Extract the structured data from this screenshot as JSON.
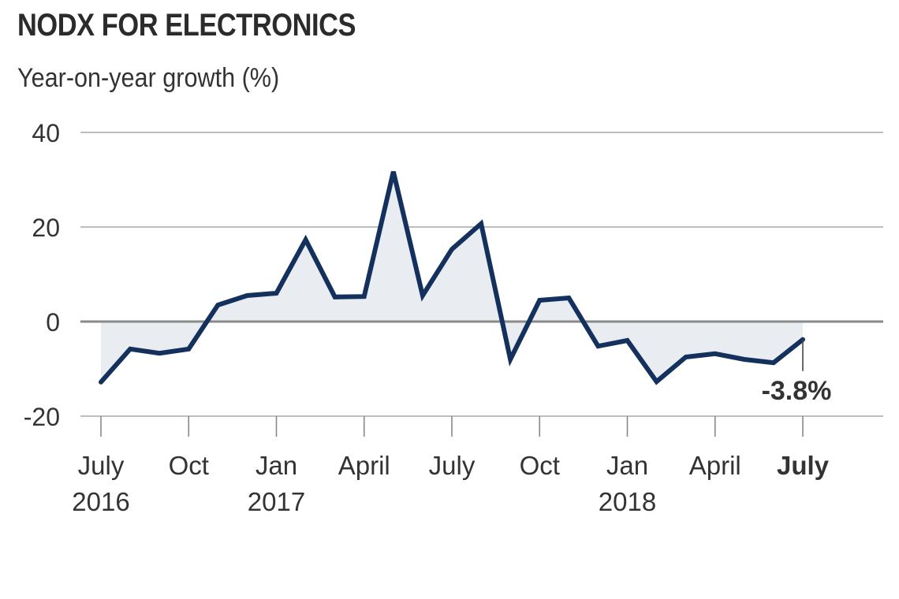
{
  "chart_data": {
    "type": "line",
    "title": "NODX FOR ELECTRONICS",
    "subtitle": "Year-on-year growth (%)",
    "xlabel": "",
    "ylabel": "Year-on-year growth (%)",
    "ylim": [
      -20,
      40
    ],
    "yticks": [
      {
        "value": 40,
        "label": "40"
      },
      {
        "value": 20,
        "label": "20"
      },
      {
        "value": 0,
        "label": "0"
      },
      {
        "value": -20,
        "label": "-20"
      }
    ],
    "grid": true,
    "x": [
      "Jul 2016",
      "Aug 2016",
      "Sep 2016",
      "Oct 2016",
      "Nov 2016",
      "Dec 2016",
      "Jan 2017",
      "Feb 2017",
      "Mar 2017",
      "Apr 2017",
      "May 2017",
      "Jun 2017",
      "Jul 2017",
      "Aug 2017",
      "Sep 2017",
      "Oct 2017",
      "Nov 2017",
      "Dec 2017",
      "Jan 2018",
      "Feb 2018",
      "Mar 2018",
      "Apr 2018",
      "May 2018",
      "Jun 2018",
      "Jul 2018"
    ],
    "series": [
      {
        "name": "NODX for electronics",
        "values": [
          -12.8,
          -5.8,
          -6.7,
          -5.8,
          3.5,
          5.5,
          6.0,
          17.3,
          5.2,
          5.3,
          31.7,
          5.5,
          15.3,
          20.7,
          -8.0,
          4.5,
          5.0,
          -5.2,
          -4.0,
          -12.7,
          -7.5,
          -6.8,
          -8.0,
          -8.7,
          -3.8
        ]
      }
    ],
    "xticks": [
      {
        "index": 0,
        "line1": "July",
        "line2": "2016",
        "bold": false
      },
      {
        "index": 3,
        "line1": "Oct",
        "line2": "",
        "bold": false
      },
      {
        "index": 6,
        "line1": "Jan",
        "line2": "2017",
        "bold": false
      },
      {
        "index": 9,
        "line1": "April",
        "line2": "",
        "bold": false
      },
      {
        "index": 12,
        "line1": "July",
        "line2": "",
        "bold": false
      },
      {
        "index": 15,
        "line1": "Oct",
        "line2": "",
        "bold": false
      },
      {
        "index": 18,
        "line1": "Jan",
        "line2": "2018",
        "bold": false
      },
      {
        "index": 21,
        "line1": "April",
        "line2": "",
        "bold": false
      },
      {
        "index": 24,
        "line1": "July",
        "line2": "",
        "bold": true
      }
    ],
    "annotation": {
      "index": 24,
      "label": "-3.8%"
    },
    "colors": {
      "line": "#13315c",
      "fill": "#e9edf2",
      "grid": "#a8a8a8",
      "zero": "#8a8a8a",
      "text": "#333333"
    }
  }
}
